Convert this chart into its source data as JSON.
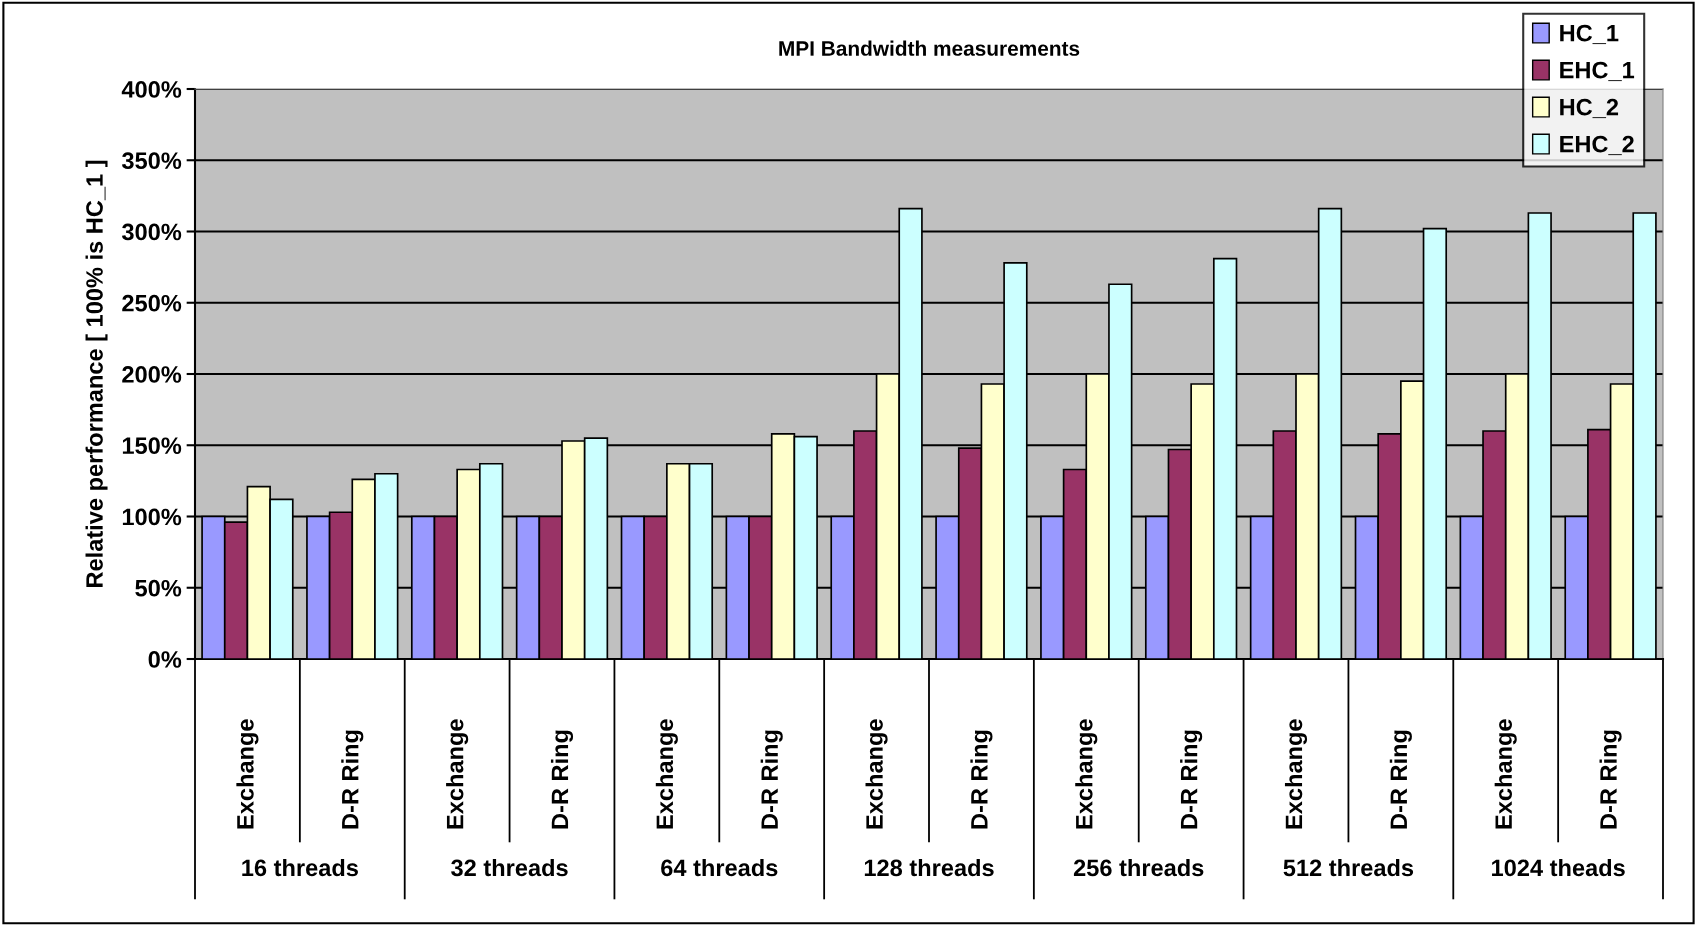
{
  "chart_data": {
    "type": "bar",
    "title": "MPI Bandwidth measurements",
    "ylabel": "Relative performance [ 100% is HC_1 ]",
    "categories": [
      "Exchange",
      "D-R Ring",
      "Exchange",
      "D-R Ring",
      "Exchange",
      "D-R Ring",
      "Exchange",
      "D-R Ring",
      "Exchange",
      "D-R Ring",
      "Exchange",
      "D-R Ring",
      "Exchange",
      "D-R Ring"
    ],
    "series": [
      {
        "name": "HC_1",
        "color": "#9999ff",
        "values": [
          100,
          100,
          100,
          100,
          100,
          100,
          100,
          100,
          100,
          100,
          100,
          100,
          100,
          100
        ]
      },
      {
        "name": "EHC_1",
        "color": "#993366",
        "values": [
          96,
          103,
          100,
          100,
          100,
          100,
          160,
          148,
          133,
          147,
          160,
          158,
          160,
          161
        ]
      },
      {
        "name": "HC_2",
        "color": "#ffffcc",
        "values": [
          121,
          126,
          133,
          153,
          137,
          158,
          200,
          193,
          200,
          193,
          200,
          195,
          200,
          193
        ]
      },
      {
        "name": "EHC_2",
        "color": "#ccffff",
        "values": [
          112,
          130,
          137,
          155,
          137,
          156,
          316,
          278,
          263,
          281,
          316,
          302,
          313,
          313
        ]
      }
    ],
    "ylim": [
      0,
      400
    ],
    "yticks": [
      {
        "value": 0,
        "label": "0%"
      },
      {
        "value": 50,
        "label": "50%"
      },
      {
        "value": 100,
        "label": "100%"
      },
      {
        "value": 150,
        "label": "150%"
      },
      {
        "value": 200,
        "label": "200%"
      },
      {
        "value": 250,
        "label": "250%"
      },
      {
        "value": 300,
        "label": "300%"
      },
      {
        "value": 350,
        "label": "350%"
      },
      {
        "value": 400,
        "label": "400%"
      }
    ],
    "grid": "y",
    "legend": "top right",
    "annotations": [
      "16 threads",
      "32 threads",
      "64 threads",
      "128 threads",
      "256 threads",
      "512 threads",
      "1024 theads"
    ]
  }
}
